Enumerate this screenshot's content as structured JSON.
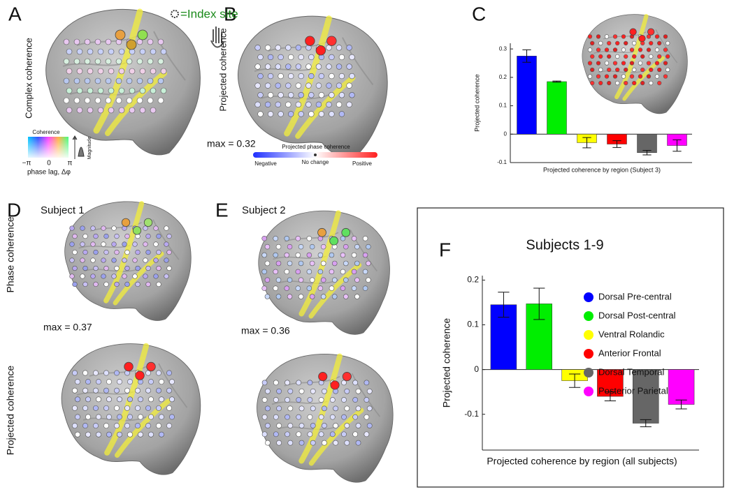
{
  "chart_data": [
    {
      "type": "bar",
      "ylabel": "Projected coherence",
      "xlabel": "Projected coherence by region (Subject 3)",
      "categories": [
        null,
        null,
        null,
        null,
        null,
        null
      ],
      "values": [
        0.275,
        0.185,
        -0.03,
        -0.035,
        -0.065,
        -0.04
      ],
      "errors": [
        0.022,
        0.002,
        0.018,
        0.012,
        0.008,
        0.02
      ],
      "colors": [
        "#0000ff",
        "#00ee00",
        "#ffff00",
        "#ff0000",
        "#666666",
        "#ff00ff"
      ],
      "ylim": [
        -0.1,
        0.32
      ],
      "yticks": [
        -0.1,
        0,
        0.1,
        0.2,
        0.3
      ]
    },
    {
      "type": "bar",
      "title": "Subjects 1-9",
      "ylabel": "Projected coherence",
      "xlabel": "Projected coherence by region (all subjects)",
      "categories": [
        "Dorsal Pre-central",
        "Dorsal Post-central",
        "Ventral Rolandic",
        "Anterior Frontal",
        "Dorsal Temporal",
        "Posterior Parietal"
      ],
      "values": [
        0.145,
        0.147,
        -0.025,
        -0.06,
        -0.12,
        -0.078
      ],
      "errors": [
        0.028,
        0.035,
        0.015,
        0.01,
        0.008,
        0.01
      ],
      "colors": [
        "#0000ff",
        "#00ee00",
        "#ffff00",
        "#ff0000",
        "#666666",
        "#ff00ff"
      ],
      "ylim": [
        -0.18,
        0.21
      ],
      "yticks": [
        -0.1,
        0,
        0.1,
        0.2
      ],
      "legend": "upper right"
    }
  ],
  "figure": {
    "panel_letters": [
      "A",
      "B",
      "C",
      "D",
      "E",
      "F"
    ],
    "index_site": "=Index site",
    "a_ylabel": "Complex coherence",
    "coherence": "Coherence",
    "minus_pi": "−π",
    "zero": "0",
    "pi": "π",
    "phase_lag": "phase lag, Δφ",
    "magnitude": "Magnitude",
    "b_ylabel": "Projected coherence",
    "b_max": "max = 0.32",
    "ppc": "Projected phase coherence",
    "negative": "Negative",
    "no_change": "No change",
    "positive": "Positive",
    "subject1": "Subject 1",
    "d_phase": "Phase coherence",
    "d_max": "max = 0.37",
    "d_proj": "Projected coherence",
    "subject2": "Subject 2",
    "e_max": "max = 0.36"
  }
}
